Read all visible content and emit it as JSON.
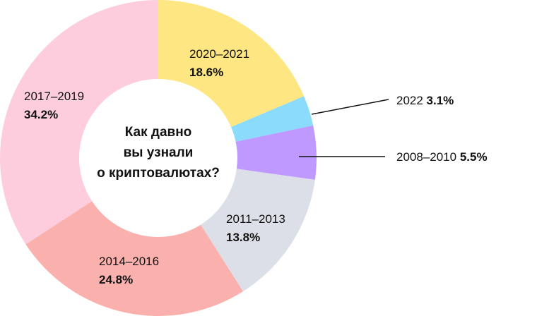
{
  "chart_data": {
    "type": "pie",
    "title": "Как давно вы узнали о криптовалютах?",
    "title_lines": [
      "Как давно",
      "вы узнали",
      "о криптовалютах?"
    ],
    "slices": [
      {
        "label": "2020–2021",
        "value": 18.6,
        "value_text": "18.6%",
        "color": "#FEE682"
      },
      {
        "label": "2022",
        "value": 3.1,
        "value_text": "3.1%",
        "color": "#8BDBFC"
      },
      {
        "label": "2008–2010",
        "value": 5.5,
        "value_text": "5.5%",
        "color": "#BF99FF"
      },
      {
        "label": "2011–2013",
        "value": 13.8,
        "value_text": "13.8%",
        "color": "#DCDFE7"
      },
      {
        "label": "2014–2016",
        "value": 24.8,
        "value_text": "24.8%",
        "color": "#FAB0AD"
      },
      {
        "label": "2017–2019",
        "value": 34.2,
        "value_text": "34.2%",
        "color": "#FDCDDE"
      }
    ],
    "start": "top",
    "direction": "clockwise",
    "donut": true
  }
}
